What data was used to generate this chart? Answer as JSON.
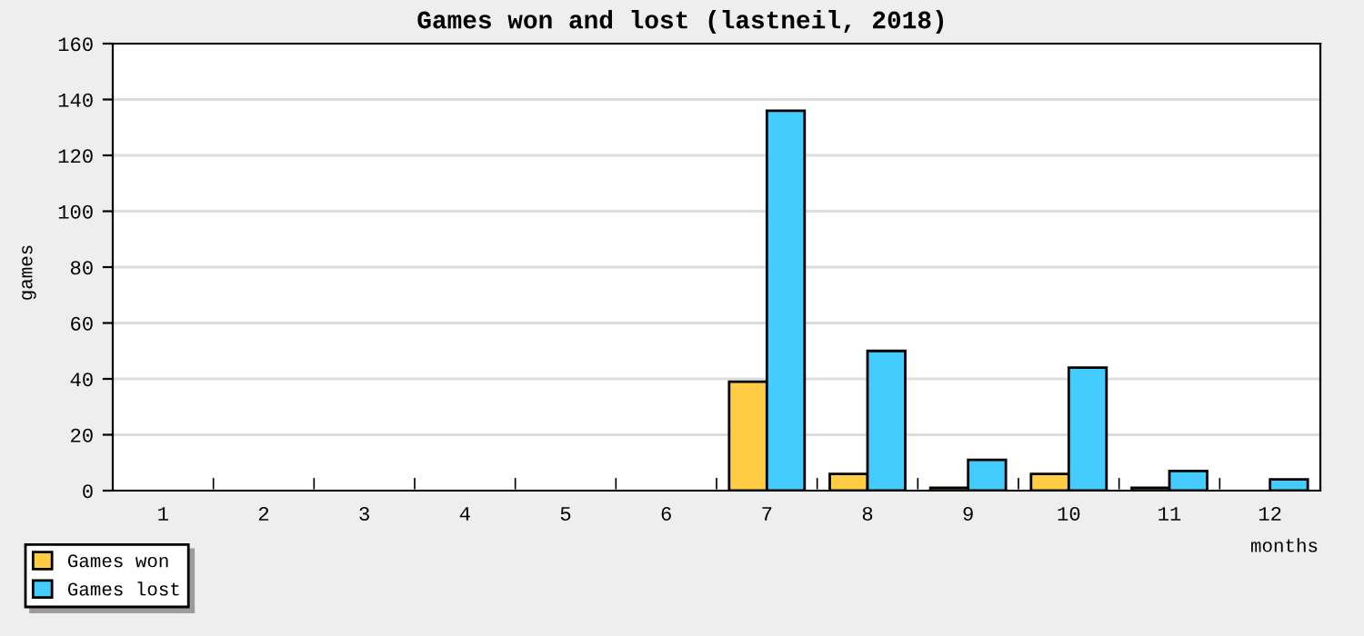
{
  "chart_data": {
    "type": "bar",
    "title": "Games won and lost (lastneil, 2018)",
    "xlabel": "months",
    "ylabel": "games",
    "categories": [
      "1",
      "2",
      "3",
      "4",
      "5",
      "6",
      "7",
      "8",
      "9",
      "10",
      "11",
      "12"
    ],
    "series": [
      {
        "name": "Games won",
        "color": "#ffcc44",
        "values": [
          0,
          0,
          0,
          0,
          0,
          0,
          39,
          6,
          1,
          6,
          1,
          0
        ]
      },
      {
        "name": "Games lost",
        "color": "#44ccff",
        "values": [
          0,
          0,
          0,
          0,
          0,
          0,
          136,
          50,
          11,
          44,
          7,
          4
        ]
      }
    ],
    "ylim": [
      0,
      160
    ],
    "yticks": [
      0,
      20,
      40,
      60,
      80,
      100,
      120,
      140,
      160
    ],
    "grid": "y",
    "legend": "bottom left"
  }
}
